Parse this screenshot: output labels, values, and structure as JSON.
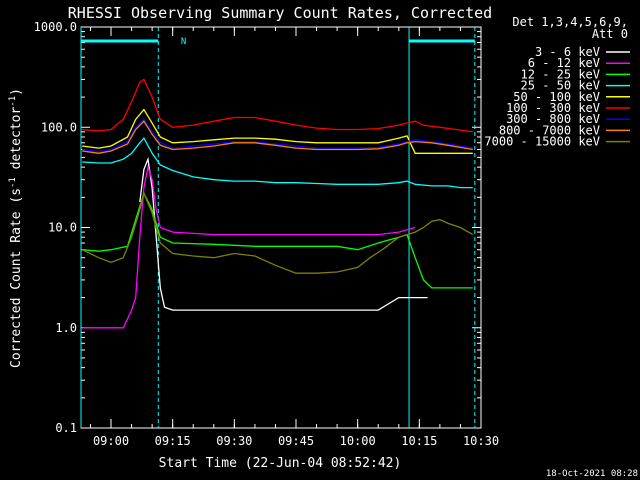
{
  "chart_data": {
    "type": "line",
    "title": "RHESSI Observing Summary Count Rates, Corrected",
    "xlabel": "Start Time (22-Jun-04 08:52:42)",
    "ylabel_main": "Corrected Count Rate (s",
    "ylabel_sup1": "-1",
    "ylabel_mid": " detector",
    "ylabel_sup2": "-1",
    "ylabel_end": ")",
    "y_scale": "log",
    "ylim": [
      0.1,
      1000
    ],
    "xlim_minutes": [
      -7.3,
      90.0
    ],
    "y_ticks": [
      {
        "value": 1000,
        "label": "1000.0"
      },
      {
        "value": 100,
        "label": "100.0"
      },
      {
        "value": 10,
        "label": "10.0"
      },
      {
        "value": 1,
        "label": "1.0"
      },
      {
        "value": 0.1,
        "label": "0.1"
      }
    ],
    "x_ticks": [
      {
        "minute": 0,
        "label": "09:00"
      },
      {
        "minute": 15,
        "label": "09:15"
      },
      {
        "minute": 30,
        "label": "09:30"
      },
      {
        "minute": 45,
        "label": "09:45"
      },
      {
        "minute": 60,
        "label": "10:00"
      },
      {
        "minute": 75,
        "label": "10:15"
      },
      {
        "minute": 90,
        "label": "10:30"
      }
    ],
    "legend_header": [
      "Det 1,3,4,5,6,9,",
      "Att 0"
    ],
    "legend_placement": "right",
    "series": [
      {
        "name": "3 - 6 keV",
        "color": "#ffffff",
        "points": [
          [
            7,
            18
          ],
          [
            8,
            38
          ],
          [
            9,
            48
          ],
          [
            10,
            25
          ],
          [
            11,
            8
          ],
          [
            12,
            2.5
          ],
          [
            13,
            1.6
          ],
          [
            15,
            1.5
          ],
          [
            25,
            1.5
          ],
          [
            35,
            1.5
          ],
          [
            45,
            1.5
          ],
          [
            55,
            1.5
          ],
          [
            60,
            1.5
          ],
          [
            65,
            1.5
          ],
          [
            70,
            2
          ],
          [
            75,
            2
          ],
          [
            77,
            2
          ]
        ]
      },
      {
        "name": "6 - 12 keV",
        "color": "#ff00ff",
        "points": [
          [
            -7,
            1
          ],
          [
            3,
            1
          ],
          [
            5,
            1.5
          ],
          [
            6,
            2
          ],
          [
            7,
            8
          ],
          [
            8,
            25
          ],
          [
            9,
            40
          ],
          [
            10,
            30
          ],
          [
            11,
            15
          ],
          [
            12,
            10
          ],
          [
            15,
            9
          ],
          [
            25,
            8.5
          ],
          [
            35,
            8.5
          ],
          [
            45,
            8.5
          ],
          [
            55,
            8.5
          ],
          [
            60,
            8.5
          ],
          [
            65,
            8.5
          ],
          [
            70,
            9
          ],
          [
            72,
            9.5
          ],
          [
            74,
            10
          ]
        ]
      },
      {
        "name": "12 - 25 keV",
        "color": "#00ff00",
        "points": [
          [
            -7,
            6
          ],
          [
            -3,
            5.8
          ],
          [
            0,
            6
          ],
          [
            4,
            6.5
          ],
          [
            6,
            12
          ],
          [
            8,
            22
          ],
          [
            10,
            15
          ],
          [
            12,
            8
          ],
          [
            15,
            7
          ],
          [
            25,
            6.8
          ],
          [
            35,
            6.5
          ],
          [
            45,
            6.5
          ],
          [
            55,
            6.5
          ],
          [
            60,
            6
          ],
          [
            65,
            7
          ],
          [
            70,
            8
          ],
          [
            72,
            8.5
          ],
          [
            74,
            5
          ],
          [
            76,
            3
          ],
          [
            78,
            2.5
          ],
          [
            80,
            2.5
          ],
          [
            85,
            2.5
          ],
          [
            88,
            2.5
          ]
        ]
      },
      {
        "name": "25 - 50 keV",
        "color": "#00ffff",
        "points": [
          [
            -7,
            45
          ],
          [
            -3,
            44
          ],
          [
            0,
            44
          ],
          [
            3,
            48
          ],
          [
            5,
            55
          ],
          [
            7,
            70
          ],
          [
            8,
            78
          ],
          [
            10,
            55
          ],
          [
            12,
            42
          ],
          [
            15,
            37
          ],
          [
            20,
            32
          ],
          [
            25,
            30
          ],
          [
            30,
            29
          ],
          [
            35,
            29
          ],
          [
            40,
            28
          ],
          [
            45,
            28
          ],
          [
            50,
            27.5
          ],
          [
            55,
            27
          ],
          [
            60,
            27
          ],
          [
            65,
            27
          ],
          [
            70,
            28
          ],
          [
            72,
            29
          ],
          [
            74,
            27
          ],
          [
            78,
            26
          ],
          [
            82,
            26
          ],
          [
            85,
            25
          ],
          [
            88,
            25
          ]
        ]
      },
      {
        "name": "50 - 100 keV",
        "color": "#ffff00",
        "points": [
          [
            -7,
            65
          ],
          [
            -3,
            62
          ],
          [
            0,
            65
          ],
          [
            4,
            80
          ],
          [
            6,
            120
          ],
          [
            8,
            150
          ],
          [
            10,
            110
          ],
          [
            12,
            80
          ],
          [
            15,
            70
          ],
          [
            20,
            72
          ],
          [
            25,
            75
          ],
          [
            30,
            78
          ],
          [
            35,
            78
          ],
          [
            40,
            76
          ],
          [
            45,
            72
          ],
          [
            50,
            70
          ],
          [
            55,
            70
          ],
          [
            60,
            70
          ],
          [
            65,
            70
          ],
          [
            70,
            78
          ],
          [
            72,
            82
          ],
          [
            74,
            55
          ],
          [
            78,
            55
          ],
          [
            82,
            55
          ],
          [
            85,
            55
          ],
          [
            88,
            55
          ]
        ]
      },
      {
        "name": "100 - 300 keV",
        "color": "#ff0000",
        "points": [
          [
            -7,
            95
          ],
          [
            -3,
            92
          ],
          [
            0,
            95
          ],
          [
            3,
            120
          ],
          [
            5,
            180
          ],
          [
            7,
            280
          ],
          [
            8,
            300
          ],
          [
            10,
            200
          ],
          [
            12,
            120
          ],
          [
            15,
            100
          ],
          [
            20,
            105
          ],
          [
            25,
            115
          ],
          [
            30,
            125
          ],
          [
            35,
            125
          ],
          [
            40,
            115
          ],
          [
            45,
            105
          ],
          [
            50,
            98
          ],
          [
            55,
            95
          ],
          [
            60,
            95
          ],
          [
            65,
            97
          ],
          [
            70,
            105
          ],
          [
            72,
            110
          ],
          [
            74,
            115
          ],
          [
            76,
            105
          ],
          [
            80,
            100
          ],
          [
            84,
            95
          ],
          [
            88,
            90
          ]
        ]
      },
      {
        "name": "300 - 800 keV",
        "color": "#0000ff",
        "points": [
          [
            -7,
            60
          ],
          [
            -3,
            57
          ],
          [
            0,
            60
          ],
          [
            4,
            72
          ],
          [
            6,
            100
          ],
          [
            8,
            120
          ],
          [
            10,
            90
          ],
          [
            12,
            70
          ],
          [
            15,
            62
          ],
          [
            20,
            65
          ],
          [
            25,
            68
          ],
          [
            30,
            72
          ],
          [
            35,
            72
          ],
          [
            40,
            68
          ],
          [
            45,
            65
          ],
          [
            50,
            62
          ],
          [
            55,
            62
          ],
          [
            60,
            62
          ],
          [
            65,
            63
          ],
          [
            70,
            68
          ],
          [
            72,
            72
          ],
          [
            74,
            75
          ],
          [
            78,
            72
          ],
          [
            82,
            68
          ],
          [
            86,
            64
          ],
          [
            88,
            62
          ]
        ]
      },
      {
        "name": "800 - 7000 keV",
        "color": "#ff8000",
        "points": [
          [
            -7,
            58
          ],
          [
            -3,
            55
          ],
          [
            0,
            58
          ],
          [
            4,
            68
          ],
          [
            6,
            95
          ],
          [
            8,
            115
          ],
          [
            10,
            85
          ],
          [
            12,
            66
          ],
          [
            15,
            60
          ],
          [
            20,
            62
          ],
          [
            25,
            65
          ],
          [
            30,
            70
          ],
          [
            35,
            70
          ],
          [
            40,
            66
          ],
          [
            45,
            62
          ],
          [
            50,
            60
          ],
          [
            55,
            60
          ],
          [
            60,
            60
          ],
          [
            65,
            61
          ],
          [
            70,
            66
          ],
          [
            72,
            70
          ],
          [
            74,
            72
          ],
          [
            78,
            70
          ],
          [
            82,
            66
          ],
          [
            86,
            62
          ],
          [
            88,
            60
          ]
        ]
      },
      {
        "name": "7000 - 15000 keV",
        "color": "#808000",
        "points": [
          [
            -7,
            6
          ],
          [
            -3,
            5
          ],
          [
            0,
            4.5
          ],
          [
            3,
            5
          ],
          [
            5,
            8
          ],
          [
            7,
            15
          ],
          [
            8,
            22
          ],
          [
            10,
            14
          ],
          [
            12,
            7
          ],
          [
            15,
            5.5
          ],
          [
            20,
            5.2
          ],
          [
            25,
            5
          ],
          [
            30,
            5.5
          ],
          [
            35,
            5.2
          ],
          [
            40,
            4.2
          ],
          [
            45,
            3.5
          ],
          [
            50,
            3.5
          ],
          [
            55,
            3.6
          ],
          [
            60,
            4
          ],
          [
            63,
            5
          ],
          [
            66,
            6
          ],
          [
            70,
            8
          ],
          [
            74,
            9
          ],
          [
            76,
            10
          ],
          [
            78,
            11.5
          ],
          [
            80,
            12
          ],
          [
            82,
            11
          ],
          [
            85,
            10
          ],
          [
            88,
            8.5
          ]
        ]
      }
    ],
    "vertical_lines_minutes": [
      {
        "minute": -7.3,
        "style": "solid",
        "color": "#00ffff"
      },
      {
        "minute": 11.5,
        "style": "dashed",
        "color": "#00ffff"
      },
      {
        "minute": 72.5,
        "style": "solid",
        "color": "#00ffff"
      },
      {
        "minute": 88.5,
        "style": "dashed",
        "color": "#00ffff"
      }
    ],
    "night_bars": [
      {
        "from": -7.3,
        "to": 11.5,
        "label": "N"
      },
      {
        "from": 72.5,
        "to": 88.5,
        "label": ""
      }
    ],
    "timestamp": "18-Oct-2021 08:28"
  }
}
